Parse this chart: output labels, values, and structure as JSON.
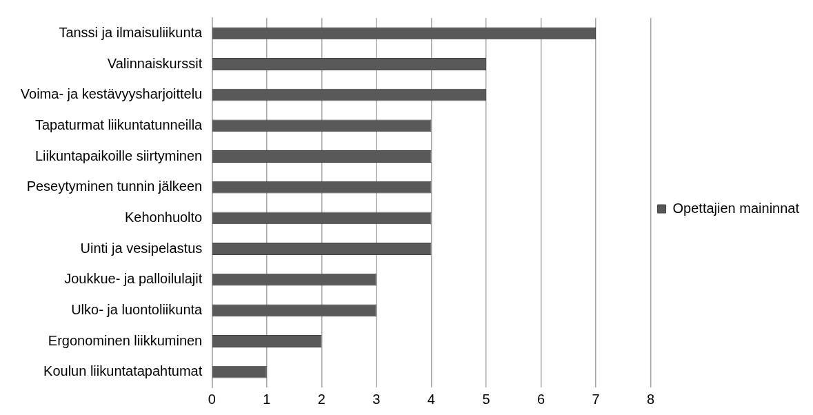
{
  "chart_data": {
    "type": "bar",
    "orientation": "horizontal",
    "categories": [
      "Tanssi ja ilmaisuliikunta",
      "Valinnaiskurssit",
      "Voima- ja kestävyysharjoittelu",
      "Tapaturmat liikuntatunneilla",
      "Liikuntapaikoille siirtyminen",
      "Peseytyminen tunnin jälkeen",
      "Kehonhuolto",
      "Uinti ja vesipelastus",
      "Joukkue- ja palloilulajit",
      "Ulko- ja luontoliikunta",
      "Ergonominen liikkuminen",
      "Koulun liikuntatapahtumat"
    ],
    "series": [
      {
        "name": "Opettajien maininnat",
        "color": "#595959",
        "values": [
          7,
          5,
          5,
          4,
          4,
          4,
          4,
          4,
          3,
          3,
          2,
          1
        ]
      }
    ],
    "xlim": [
      0,
      8
    ],
    "xticks": [
      0,
      1,
      2,
      3,
      4,
      5,
      6,
      7,
      8
    ],
    "grid": "x",
    "legend": "right"
  }
}
